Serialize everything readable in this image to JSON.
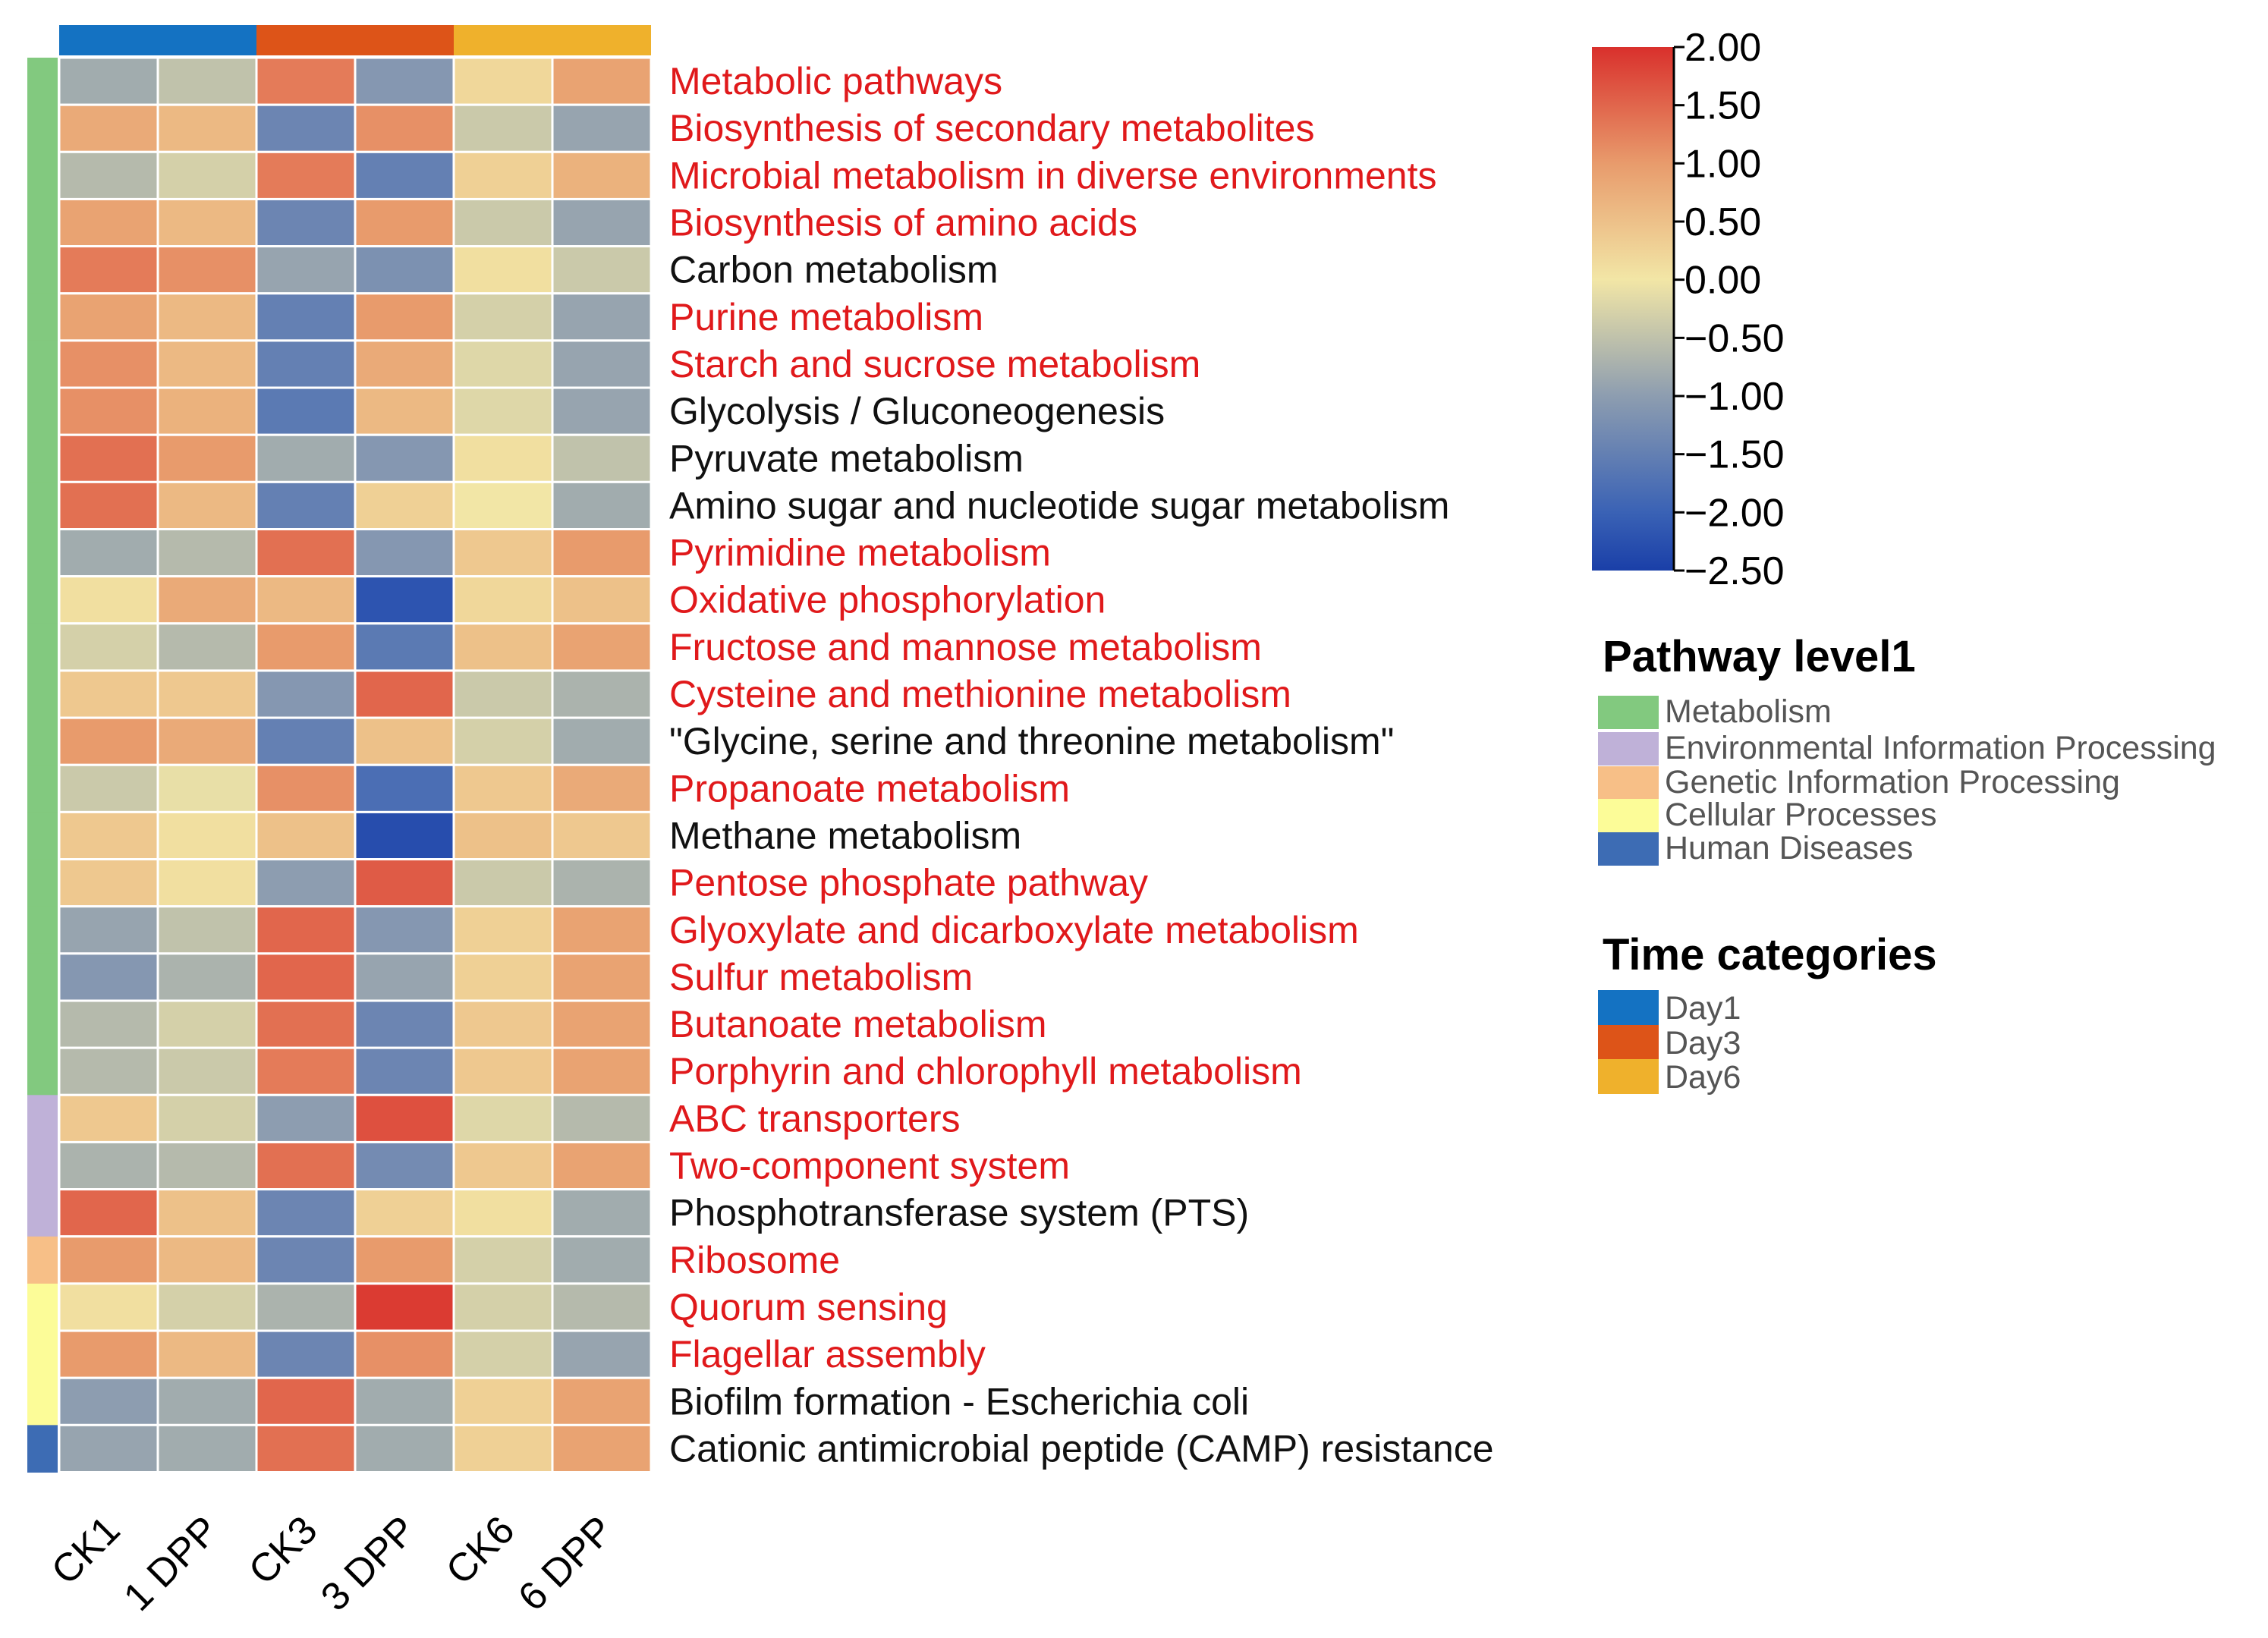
{
  "chart_data": {
    "type": "heatmap",
    "title": "",
    "columns": [
      "CK1",
      "1 DPP",
      "CK3",
      "3 DPP",
      "CK6",
      "6 DPP"
    ],
    "column_time": [
      "Day1",
      "Day1",
      "Day3",
      "Day3",
      "Day6",
      "Day6"
    ],
    "rows": [
      {
        "label": "Metabolic pathways",
        "category": "Metabolism",
        "highlight": true,
        "values": [
          -0.8,
          -0.5,
          1.3,
          -1.1,
          0.2,
          0.9
        ]
      },
      {
        "label": "Biosynthesis of secondary metabolites",
        "category": "Metabolism",
        "highlight": true,
        "values": [
          0.8,
          0.6,
          -1.4,
          1.1,
          -0.4,
          -0.9
        ]
      },
      {
        "label": "Microbial metabolism in diverse environments",
        "category": "Metabolism",
        "highlight": true,
        "values": [
          -0.6,
          -0.3,
          1.3,
          -1.5,
          0.3,
          0.7
        ]
      },
      {
        "label": "Biosynthesis of amino acids",
        "category": "Metabolism",
        "highlight": true,
        "values": [
          0.9,
          0.6,
          -1.4,
          1.0,
          -0.4,
          -0.9
        ]
      },
      {
        "label": "Carbon metabolism",
        "category": "Metabolism",
        "highlight": false,
        "values": [
          1.3,
          1.1,
          -0.9,
          -1.2,
          0.1,
          -0.4
        ]
      },
      {
        "label": "Purine metabolism",
        "category": "Metabolism",
        "highlight": true,
        "values": [
          0.9,
          0.6,
          -1.5,
          1.0,
          -0.3,
          -0.9
        ]
      },
      {
        "label": "Starch and sucrose metabolism",
        "category": "Metabolism",
        "highlight": true,
        "values": [
          1.1,
          0.6,
          -1.5,
          0.8,
          -0.2,
          -0.9
        ]
      },
      {
        "label": "Glycolysis / Gluconeogenesis",
        "category": "Metabolism",
        "highlight": false,
        "values": [
          1.1,
          0.7,
          -1.6,
          0.6,
          -0.2,
          -0.9
        ]
      },
      {
        "label": "Pyruvate metabolism",
        "category": "Metabolism",
        "highlight": false,
        "values": [
          1.4,
          1.0,
          -0.8,
          -1.1,
          0.1,
          -0.5
        ]
      },
      {
        "label": "Amino sugar and nucleotide sugar metabolism",
        "category": "Metabolism",
        "highlight": false,
        "values": [
          1.4,
          0.6,
          -1.5,
          0.3,
          0.0,
          -0.8
        ]
      },
      {
        "label": "Pyrimidine metabolism",
        "category": "Metabolism",
        "highlight": true,
        "values": [
          -0.8,
          -0.6,
          1.4,
          -1.1,
          0.4,
          1.0
        ]
      },
      {
        "label": "Oxidative phosphorylation",
        "category": "Metabolism",
        "highlight": true,
        "values": [
          0.1,
          0.8,
          0.6,
          -2.2,
          0.2,
          0.5
        ]
      },
      {
        "label": "Fructose and mannose metabolism",
        "category": "Metabolism",
        "highlight": true,
        "values": [
          -0.3,
          -0.6,
          1.0,
          -1.6,
          0.5,
          0.9
        ]
      },
      {
        "label": "Cysteine and methionine metabolism",
        "category": "Metabolism",
        "highlight": true,
        "values": [
          0.4,
          0.4,
          -1.1,
          1.5,
          -0.4,
          -0.7
        ]
      },
      {
        "label": "\"Glycine, serine and threonine metabolism\"",
        "category": "Metabolism",
        "highlight": false,
        "values": [
          1.0,
          0.8,
          -1.5,
          0.5,
          -0.3,
          -0.8
        ]
      },
      {
        "label": "Propanoate metabolism",
        "category": "Metabolism",
        "highlight": true,
        "values": [
          -0.4,
          -0.1,
          1.1,
          -1.8,
          0.4,
          0.8
        ]
      },
      {
        "label": "Methane metabolism",
        "category": "Metabolism",
        "highlight": false,
        "values": [
          0.4,
          0.1,
          0.5,
          -2.3,
          0.5,
          0.4
        ]
      },
      {
        "label": "Pentose phosphate pathway",
        "category": "Metabolism",
        "highlight": true,
        "values": [
          0.4,
          0.1,
          -1.0,
          1.6,
          -0.4,
          -0.7
        ]
      },
      {
        "label": "Glyoxylate and dicarboxylate metabolism",
        "category": "Metabolism",
        "highlight": true,
        "values": [
          -0.9,
          -0.5,
          1.5,
          -1.1,
          0.3,
          0.9
        ]
      },
      {
        "label": "Sulfur metabolism",
        "category": "Metabolism",
        "highlight": true,
        "values": [
          -1.1,
          -0.7,
          1.5,
          -0.9,
          0.3,
          0.9
        ]
      },
      {
        "label": "Butanoate metabolism",
        "category": "Metabolism",
        "highlight": true,
        "values": [
          -0.6,
          -0.3,
          1.4,
          -1.4,
          0.4,
          0.9
        ]
      },
      {
        "label": "Porphyrin and chlorophyll metabolism",
        "category": "Metabolism",
        "highlight": true,
        "values": [
          -0.6,
          -0.4,
          1.3,
          -1.4,
          0.4,
          0.9
        ]
      },
      {
        "label": "ABC transporters",
        "category": "Environmental Information Processing",
        "highlight": true,
        "values": [
          0.4,
          -0.3,
          -1.0,
          1.7,
          -0.2,
          -0.6
        ]
      },
      {
        "label": "Two-component system",
        "category": "Environmental Information Processing",
        "highlight": true,
        "values": [
          -0.7,
          -0.6,
          1.4,
          -1.3,
          0.4,
          0.9
        ]
      },
      {
        "label": "Phosphotransferase system (PTS)",
        "category": "Environmental Information Processing",
        "highlight": false,
        "values": [
          1.5,
          0.5,
          -1.4,
          0.3,
          0.1,
          -0.8
        ]
      },
      {
        "label": "Ribosome",
        "category": "Genetic Information Processing",
        "highlight": true,
        "values": [
          1.0,
          0.6,
          -1.4,
          1.0,
          -0.3,
          -0.8
        ]
      },
      {
        "label": "Quorum sensing",
        "category": "Cellular Processes",
        "highlight": true,
        "values": [
          0.1,
          -0.3,
          -0.7,
          1.9,
          -0.3,
          -0.6
        ]
      },
      {
        "label": "Flagellar assembly",
        "category": "Cellular Processes",
        "highlight": true,
        "values": [
          1.0,
          0.6,
          -1.4,
          1.1,
          -0.3,
          -0.9
        ]
      },
      {
        "label": "Biofilm formation - Escherichia coli",
        "category": "Cellular Processes",
        "highlight": false,
        "values": [
          -1.0,
          -0.8,
          1.5,
          -0.8,
          0.3,
          0.9
        ]
      },
      {
        "label": "Cationic antimicrobial peptide (CAMP) resistance",
        "category": "Human Diseases",
        "highlight": false,
        "values": [
          -0.9,
          -0.8,
          1.4,
          -0.8,
          0.3,
          0.9
        ]
      }
    ],
    "color_scale": {
      "stops": [
        {
          "value": -2.5,
          "color": "#1a3fa8"
        },
        {
          "value": -2.0,
          "color": "#3a62b5"
        },
        {
          "value": -1.0,
          "color": "#8d9db0"
        },
        {
          "value": 0.0,
          "color": "#f2e6a6"
        },
        {
          "value": 1.0,
          "color": "#e89b6c"
        },
        {
          "value": 2.0,
          "color": "#d9302c"
        }
      ],
      "ticks": [
        "2.00",
        "1.50",
        "1.00",
        "0.50",
        "0.00",
        "-0.50",
        "-1.00",
        "-1.50",
        "-2.00",
        "-2.50"
      ],
      "range": [
        -2.5,
        2.0
      ]
    },
    "legend_pathway": {
      "title": "Pathway level1",
      "items": [
        {
          "label": "Metabolism",
          "color": "#82c97f"
        },
        {
          "label": "Environmental Information Processing",
          "color": "#bfb1d8"
        },
        {
          "label": "Genetic Information Processing",
          "color": "#f7bf87"
        },
        {
          "label": "Cellular Processes",
          "color": "#fcfc98"
        },
        {
          "label": "Human Diseases",
          "color": "#3d6cb4"
        }
      ]
    },
    "legend_time": {
      "title": "Time categories",
      "items": [
        {
          "label": "Day1",
          "color": "#1472c2"
        },
        {
          "label": "Day3",
          "color": "#dd5418"
        },
        {
          "label": "Day6",
          "color": "#efb12c"
        }
      ]
    },
    "label_colors": {
      "highlight": "#e0191b",
      "normal": "#111111"
    }
  }
}
